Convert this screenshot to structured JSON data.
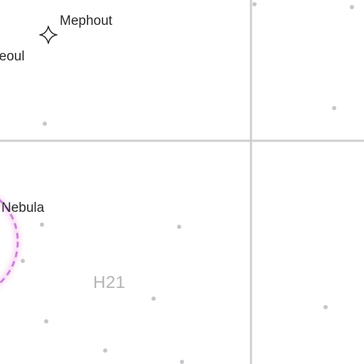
{
  "map": {
    "grid_color": "#cfcfcf",
    "star_color": "#c4c7cc",
    "nebula_color": "#c06ad8",
    "nebula_glow": "#fbe6f7"
  },
  "locations": {
    "mephout": {
      "name": "Mephout",
      "icon": "four-point-star-icon"
    },
    "seoul": {
      "name": "Seoul"
    },
    "nebula": {
      "name": "Nebula"
    }
  },
  "sector": {
    "label": "H21"
  }
}
